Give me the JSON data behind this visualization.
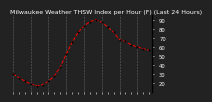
{
  "title": "Milwaukee Weather THSW Index per Hour (F) (Last 24 Hours)",
  "bg_color": "#222222",
  "plot_bg": "#222222",
  "line_color": "#ff0000",
  "marker_color": "#000000",
  "grid_color": "#666666",
  "y_values": [
    30,
    26,
    22,
    19,
    17,
    18,
    22,
    28,
    38,
    52,
    65,
    76,
    83,
    88,
    90,
    87,
    82,
    76,
    68,
    66,
    62,
    60,
    58,
    56
  ],
  "ylim": [
    10,
    95
  ],
  "ytick_positions": [
    20,
    30,
    40,
    50,
    60,
    70,
    80,
    90
  ],
  "ytick_labels": [
    "20",
    "30",
    "40",
    "50",
    "60",
    "70",
    "80",
    "90"
  ],
  "title_fontsize": 4.5,
  "tick_fontsize": 3.8
}
